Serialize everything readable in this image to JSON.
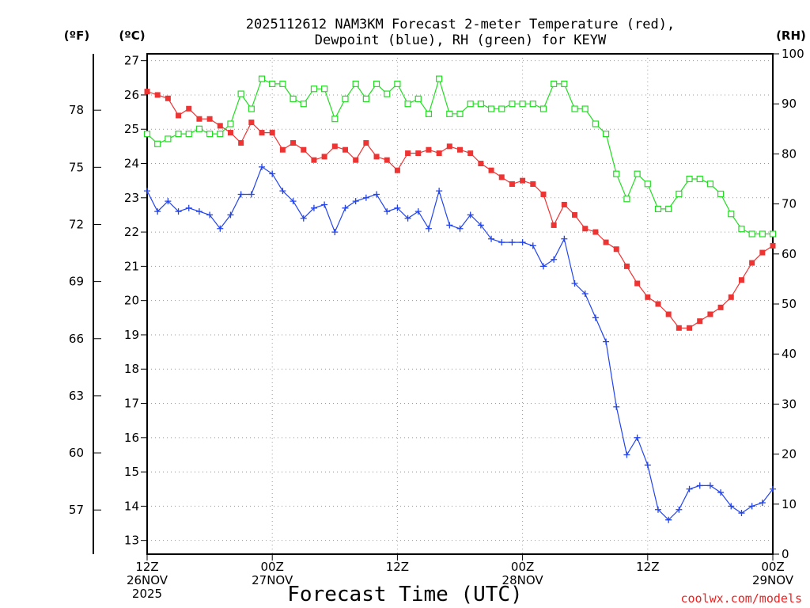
{
  "chart_data": {
    "type": "line",
    "title_lines": [
      "2025112612 NAM3KM Forecast 2-meter Temperature (red),",
      "Dewpoint (blue), RH (green) for KEYW"
    ],
    "xlabel": "Forecast Time (UTC)",
    "credit": "coolwx.com/models",
    "credit_color": "#ee2222",
    "unit_labels": {
      "fahrenheit": "(ºF)",
      "celsius": "(ºC)",
      "rh": "(RH)"
    },
    "celsius_axis": {
      "min": 12.6,
      "max": 27.2,
      "ticks": [
        13,
        14,
        15,
        16,
        17,
        18,
        19,
        20,
        21,
        22,
        23,
        24,
        25,
        26,
        27
      ]
    },
    "fahrenheit_ticks": [
      57,
      60,
      63,
      66,
      69,
      72,
      75,
      78
    ],
    "rh_axis": {
      "min": 0,
      "max": 100,
      "ticks": [
        0,
        10,
        20,
        30,
        40,
        50,
        60,
        70,
        80,
        90,
        100
      ]
    },
    "x_range_hours": [
      0,
      60
    ],
    "x_tick_hours": [
      0,
      12,
      24,
      36,
      48,
      60
    ],
    "x_tick_labels": [
      [
        "12Z",
        "26NOV",
        "2025"
      ],
      [
        "00Z",
        "27NOV"
      ],
      [
        "12Z"
      ],
      [
        "00Z",
        "28NOV"
      ],
      [
        "12Z"
      ],
      [
        "00Z",
        "29NOV"
      ]
    ],
    "series": [
      {
        "name": "Temperature",
        "color": "#ee3333",
        "marker": "filled-square",
        "axis": "celsius",
        "values": [
          26.1,
          26.0,
          25.9,
          25.4,
          25.6,
          25.3,
          25.3,
          25.1,
          24.9,
          24.6,
          25.2,
          24.9,
          24.9,
          24.4,
          24.6,
          24.4,
          24.1,
          24.2,
          24.5,
          24.4,
          24.1,
          24.6,
          24.2,
          24.1,
          23.8,
          24.3,
          24.3,
          24.4,
          24.3,
          24.5,
          24.4,
          24.3,
          24.0,
          23.8,
          23.6,
          23.4,
          23.5,
          23.4,
          23.1,
          22.2,
          22.8,
          22.5,
          22.1,
          22.0,
          21.7,
          21.5,
          21.0,
          20.5,
          20.1,
          19.9,
          19.6,
          19.2,
          19.2,
          19.4,
          19.6,
          19.8,
          20.1,
          20.6,
          21.1,
          21.4,
          21.6
        ]
      },
      {
        "name": "Dewpoint",
        "color": "#2244ee",
        "marker": "plus",
        "axis": "celsius",
        "values": [
          23.2,
          22.6,
          22.9,
          22.6,
          22.7,
          22.6,
          22.5,
          22.1,
          22.5,
          23.1,
          23.1,
          23.9,
          23.7,
          23.2,
          22.9,
          22.4,
          22.7,
          22.8,
          22.0,
          22.7,
          22.9,
          23.0,
          23.1,
          22.6,
          22.7,
          22.4,
          22.6,
          22.1,
          23.2,
          22.2,
          22.1,
          22.5,
          22.2,
          21.8,
          21.7,
          21.7,
          21.7,
          21.6,
          21.0,
          21.2,
          21.8,
          20.5,
          20.2,
          19.5,
          18.8,
          16.9,
          15.5,
          16.0,
          15.2,
          13.9,
          13.6,
          13.9,
          14.5,
          14.6,
          14.6,
          14.4,
          14.0,
          13.8,
          14.0,
          14.1,
          14.5
        ]
      },
      {
        "name": "RH",
        "color": "#22dd22",
        "marker": "open-square",
        "axis": "rh",
        "values": [
          84,
          82,
          83,
          84,
          84,
          85,
          84,
          84,
          86,
          92,
          89,
          95,
          94,
          94,
          91,
          90,
          93,
          93,
          87,
          91,
          94,
          91,
          94,
          92,
          94,
          90,
          91,
          88,
          95,
          88,
          88,
          90,
          90,
          89,
          89,
          90,
          90,
          90,
          89,
          94,
          94,
          89,
          89,
          86,
          84,
          76,
          71,
          76,
          74,
          69,
          69,
          72,
          75,
          75,
          74,
          72,
          68,
          65,
          64,
          64,
          64
        ]
      }
    ]
  }
}
